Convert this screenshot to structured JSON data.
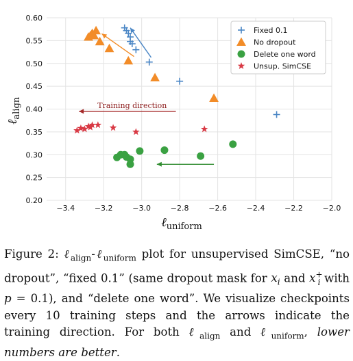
{
  "chart_data": {
    "type": "scatter",
    "xlabel_main": "ℓ",
    "xlabel_sub": "uniform",
    "ylabel_main": "ℓ",
    "ylabel_sub": "align",
    "xlim": [
      -3.5,
      -2.0
    ],
    "ylim": [
      0.2,
      0.6
    ],
    "xticks": [
      "−3.4",
      "−3.2",
      "−3.0",
      "−2.8",
      "−2.6",
      "−2.4",
      "−2.2",
      "−2.0"
    ],
    "xtick_values": [
      -3.4,
      -3.2,
      -3.0,
      -2.8,
      -2.6,
      -2.4,
      -2.2,
      -2.0
    ],
    "yticks": [
      "0.20",
      "0.25",
      "0.30",
      "0.35",
      "0.40",
      "0.45",
      "0.50",
      "0.55",
      "0.60"
    ],
    "ytick_values": [
      0.2,
      0.25,
      0.3,
      0.35,
      0.4,
      0.45,
      0.5,
      0.55,
      0.6
    ],
    "grid": true,
    "legend_position": "top-right",
    "series": [
      {
        "name": "Fixed 0.1",
        "marker": "plus",
        "color": "#4a86c5",
        "points": [
          [
            -3.09,
            0.578
          ],
          [
            -3.08,
            0.572
          ],
          [
            -3.07,
            0.566
          ],
          [
            -3.06,
            0.558
          ],
          [
            -3.06,
            0.548
          ],
          [
            -3.05,
            0.543
          ],
          [
            -3.03,
            0.53
          ],
          [
            -2.96,
            0.503
          ],
          [
            -2.8,
            0.461
          ],
          [
            -2.29,
            0.388
          ]
        ]
      },
      {
        "name": "No dropout",
        "marker": "triangle",
        "color": "#f28c28",
        "points": [
          [
            -3.28,
            0.558
          ],
          [
            -3.27,
            0.561
          ],
          [
            -3.26,
            0.566
          ],
          [
            -3.25,
            0.561
          ],
          [
            -3.24,
            0.572
          ],
          [
            -3.22,
            0.548
          ],
          [
            -3.17,
            0.533
          ],
          [
            -3.07,
            0.506
          ],
          [
            -2.93,
            0.469
          ],
          [
            -2.62,
            0.424
          ]
        ]
      },
      {
        "name": "Delete one word",
        "marker": "circle",
        "color": "#3aa142",
        "points": [
          [
            -3.13,
            0.294
          ],
          [
            -3.11,
            0.3
          ],
          [
            -3.09,
            0.3
          ],
          [
            -3.08,
            0.295
          ],
          [
            -3.06,
            0.29
          ],
          [
            -3.06,
            0.279
          ],
          [
            -3.01,
            0.308
          ],
          [
            -2.88,
            0.31
          ],
          [
            -2.69,
            0.297
          ],
          [
            -2.52,
            0.323
          ]
        ]
      },
      {
        "name": "Unsup. SimCSE",
        "marker": "star",
        "color": "#d93a45",
        "points": [
          [
            -3.34,
            0.353
          ],
          [
            -3.32,
            0.358
          ],
          [
            -3.3,
            0.356
          ],
          [
            -3.28,
            0.362
          ],
          [
            -3.27,
            0.36
          ],
          [
            -3.26,
            0.365
          ],
          [
            -3.23,
            0.365
          ],
          [
            -3.15,
            0.359
          ],
          [
            -3.03,
            0.35
          ],
          [
            -2.67,
            0.356
          ]
        ]
      }
    ],
    "arrows": [
      {
        "color": "#4a86c5",
        "from": [
          -2.95,
          0.513
        ],
        "to": [
          -3.06,
          0.578
        ]
      },
      {
        "color": "#f28c28",
        "from": [
          -3.04,
          0.515
        ],
        "to": [
          -3.21,
          0.565
        ]
      },
      {
        "color": "#2e8b2e",
        "from": [
          -2.62,
          0.279
        ],
        "to": [
          -2.92,
          0.279
        ]
      },
      {
        "color": "#a52a2a",
        "from": [
          -2.82,
          0.395
        ],
        "to": [
          -3.33,
          0.395
        ]
      }
    ],
    "annotations": [
      {
        "text": "Training direction",
        "x": -3.05,
        "y": 0.402,
        "color": "#8b1a1a"
      }
    ]
  },
  "caption": {
    "figure_label": "Figure 2:",
    "l_symbol": "ℓ",
    "align_sub": "align",
    "uniform_sub": "uniform",
    "dash": "-",
    "part1": " plot for unsupervised SimCSE, “no dropout”, “fixed 0.1” (same dropout mask for ",
    "x_i": "x",
    "sub_i": "i",
    "and": " and ",
    "x_plus": "x",
    "sup_plus": "+",
    "sub_i2": "i",
    "part2": " with ",
    "p_eq": "p",
    "part3": " = 0.1), and “delete one word”. We visualize checkpoints every 10 training steps and the arrows indicate the training direction. For both ",
    "part4": " and ",
    "part5": ", ",
    "italic_end": "lower numbers are better",
    "end": "."
  }
}
